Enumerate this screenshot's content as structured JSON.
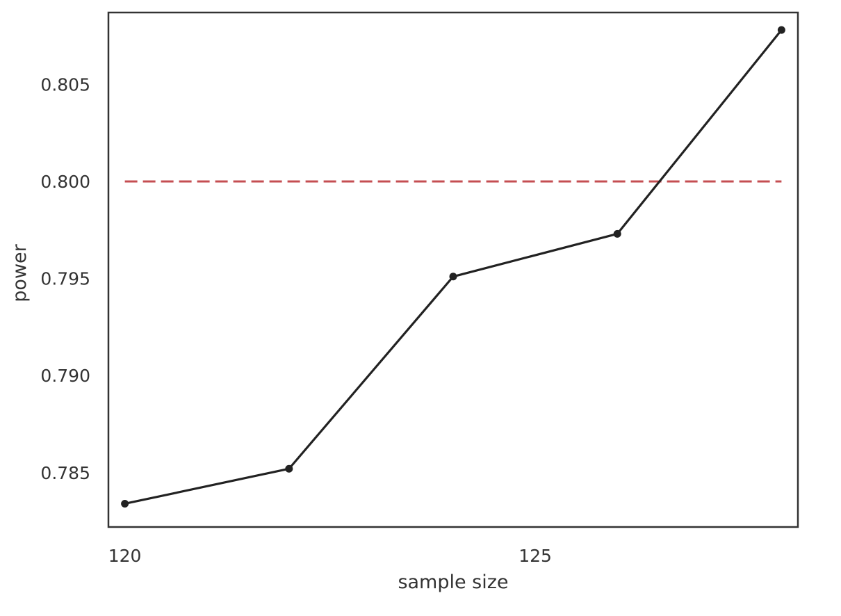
{
  "chart_data": {
    "type": "line",
    "title": "",
    "xlabel": "sample size",
    "ylabel": "power",
    "xlim": [
      119.8,
      128.2
    ],
    "ylim": [
      0.7822,
      0.8087
    ],
    "xticks": [
      120,
      125
    ],
    "xtick_labels": [
      "120",
      "125"
    ],
    "yticks": [
      0.785,
      0.79,
      0.795,
      0.8,
      0.805
    ],
    "ytick_labels": [
      "0.785",
      "0.790",
      "0.795",
      "0.800",
      "0.805"
    ],
    "grid": false,
    "series": [
      {
        "x": [
          120,
          122,
          124,
          126,
          128
        ],
        "y": [
          0.7834,
          0.7852,
          0.7951,
          0.7973,
          0.8078
        ],
        "color": "#222222",
        "marker": "circle",
        "line_style": "solid"
      }
    ],
    "reference_lines": [
      {
        "orientation": "horizontal",
        "y": 0.8,
        "x_range": [
          120,
          128
        ],
        "color": "#c44e52",
        "line_style": "dashed"
      }
    ],
    "colors": {
      "frame": "#333333",
      "text": "#333333",
      "background": "#ffffff"
    }
  }
}
